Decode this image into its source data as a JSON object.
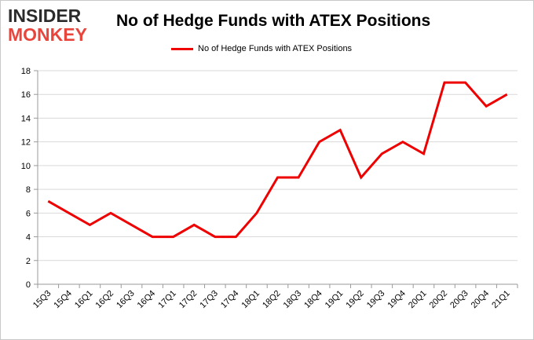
{
  "logo": {
    "line1": "INSIDER",
    "line2": "MONKEY"
  },
  "colors": {
    "series": "#ee0000",
    "grid": "#d9d9d9",
    "axis": "#9a9a9a",
    "logo_dark": "#2b2b2b",
    "logo_red": "#e8453c"
  },
  "chart_data": {
    "type": "line",
    "title": "No of Hedge Funds with ATEX Positions",
    "xlabel": "",
    "ylabel": "",
    "ylim": [
      0,
      18
    ],
    "yticks": [
      0,
      2,
      4,
      6,
      8,
      10,
      12,
      14,
      16,
      18
    ],
    "grid": true,
    "legend_position": "top-center",
    "categories": [
      "15Q3",
      "15Q4",
      "16Q1",
      "16Q2",
      "16Q3",
      "16Q4",
      "17Q1",
      "17Q2",
      "17Q3",
      "17Q4",
      "18Q1",
      "18Q2",
      "18Q3",
      "18Q4",
      "19Q1",
      "19Q2",
      "19Q3",
      "19Q4",
      "20Q1",
      "20Q2",
      "20Q3",
      "20Q4",
      "21Q1"
    ],
    "series": [
      {
        "name": "No of Hedge Funds with ATEX Positions",
        "color": "#ee0000",
        "values": [
          7,
          6,
          5,
          6,
          5,
          4,
          4,
          5,
          4,
          4,
          6,
          9,
          9,
          12,
          13,
          9,
          11,
          12,
          11,
          17,
          17,
          15,
          16
        ]
      }
    ]
  }
}
